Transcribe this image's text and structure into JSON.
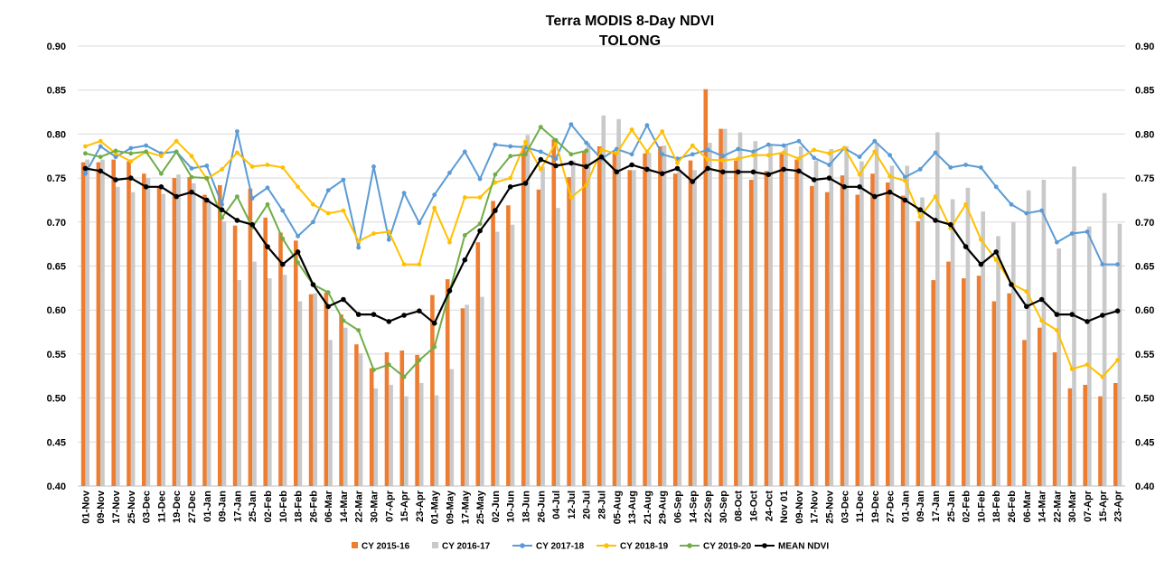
{
  "chart_data": {
    "type": "bar+line",
    "title": "Terra MODIS 8-Day  NDVI",
    "subtitle": "TOLONG",
    "xlabel": "",
    "ylabel": "",
    "ylim": [
      0.4,
      0.9
    ],
    "ytick_step": 0.05,
    "ytick_labels": [
      "0.40",
      "0.45",
      "0.50",
      "0.55",
      "0.60",
      "0.65",
      "0.70",
      "0.75",
      "0.80",
      "0.85",
      "0.90"
    ],
    "grid": true,
    "legend_position": "bottom",
    "categories": [
      "01-Nov",
      "09-Nov",
      "17-Nov",
      "25-Nov",
      "03-Dec",
      "11-Dec",
      "19-Dec",
      "27-Dec",
      "01-Jan",
      "09-Jan",
      "17-Jan",
      "25-Jan",
      "02-Feb",
      "10-Feb",
      "18-Feb",
      "26-Feb",
      "06-Mar",
      "14-Mar",
      "22-Mar",
      "30-Mar",
      "07-Apr",
      "15-Apr",
      "23-Apr",
      "01-May",
      "09-May",
      "17-May",
      "25-May",
      "02-Jun",
      "10-Jun",
      "18-Jun",
      "26-Jun",
      "04-Jul",
      "12-Jul",
      "20-Jul",
      "28-Jul",
      "05-Aug",
      "13-Aug",
      "21-Aug",
      "29-Aug",
      "06-Sep",
      "14-Sep",
      "22-Sep",
      "30-Sep",
      "08-Oct",
      "16-Oct",
      "24-Oct",
      "Nov 01",
      "09-Nov",
      "17-Nov",
      "25-Nov",
      "03-Dec",
      "11-Dec",
      "19-Dec",
      "27-Dec",
      "01-Jan",
      "09-Jan",
      "17-Jan",
      "25-Jan",
      "02-Feb",
      "10-Feb",
      "18-Feb",
      "26-Feb",
      "06-Mar",
      "14-Mar",
      "22-Mar",
      "30-Mar",
      "07-Apr",
      "15-Apr",
      "23-Apr"
    ],
    "bar_series": [
      {
        "name": "CY 2015-16",
        "color": "#ED7D31",
        "values": [
          0.768,
          0.768,
          0.771,
          0.769,
          0.755,
          0.741,
          0.75,
          0.751,
          0.731,
          0.742,
          0.696,
          0.738,
          0.705,
          0.688,
          0.679,
          0.618,
          0.62,
          0.595,
          0.561,
          0.534,
          0.552,
          0.554,
          0.549,
          0.617,
          0.635,
          0.602,
          0.677,
          0.724,
          0.719,
          0.787,
          0.737,
          0.794,
          0.751,
          0.78,
          0.786,
          0.78,
          0.759,
          0.778,
          0.786,
          0.755,
          0.77,
          0.851,
          0.806,
          0.77,
          0.748,
          0.758,
          0.779,
          0.771,
          0.741,
          0.734,
          0.753,
          0.731,
          0.755,
          0.745,
          0.73,
          0.701,
          0.634,
          0.655,
          0.636,
          0.639,
          0.61,
          0.619,
          0.566,
          0.58,
          0.552,
          0.511,
          0.515,
          0.502,
          0.517
        ]
      },
      {
        "name": "CY 2016-17",
        "color": "#C9C9C9",
        "values": [
          0.771,
          0.771,
          0.74,
          0.734,
          0.75,
          0.732,
          0.754,
          0.744,
          0.725,
          0.701,
          0.634,
          0.655,
          0.636,
          0.64,
          0.61,
          0.619,
          0.566,
          0.58,
          0.551,
          0.511,
          0.515,
          0.502,
          0.517,
          0.503,
          0.533,
          0.606,
          0.615,
          0.689,
          0.697,
          0.799,
          0.763,
          0.716,
          0.77,
          0.79,
          0.821,
          0.817,
          0.759,
          0.779,
          0.787,
          0.76,
          0.759,
          0.79,
          0.806,
          0.802,
          0.792,
          0.787,
          0.787,
          0.786,
          0.77,
          0.783,
          0.786,
          0.769,
          0.79,
          0.764,
          0.764,
          0.728,
          0.802,
          0.726,
          0.739,
          0.712,
          0.684,
          0.7,
          0.736,
          0.748,
          0.67,
          0.763,
          0.695,
          0.733,
          0.698
        ]
      }
    ],
    "line_series": [
      {
        "name": "CY 2017-18",
        "color": "#5B9BD5",
        "values": [
          0.755,
          0.786,
          0.774,
          0.784,
          0.787,
          0.778,
          0.78,
          0.761,
          0.764,
          0.72,
          0.803,
          0.727,
          0.739,
          0.713,
          0.684,
          0.7,
          0.736,
          0.748,
          0.671,
          0.763,
          0.68,
          0.733,
          0.699,
          0.731,
          0.756,
          0.78,
          0.749,
          0.788,
          0.786,
          0.785,
          0.78,
          0.772,
          0.811,
          0.79,
          0.772,
          0.783,
          0.777,
          0.81,
          0.777,
          0.772,
          0.777,
          0.782,
          0.775,
          0.783,
          0.78,
          0.788,
          0.787,
          0.792,
          0.773,
          0.765,
          0.784,
          0.774,
          0.792,
          0.776,
          0.751,
          0.76,
          0.779,
          0.762,
          0.765,
          0.762,
          0.74,
          0.72,
          0.71,
          0.713,
          0.677,
          0.687,
          0.689,
          0.652,
          0.652
        ]
      },
      {
        "name": "CY 2018-19",
        "color": "#FFC000",
        "values": [
          0.786,
          0.792,
          0.778,
          0.769,
          0.78,
          0.775,
          0.792,
          0.775,
          0.749,
          0.76,
          0.779,
          0.763,
          0.765,
          0.762,
          0.74,
          0.72,
          0.71,
          0.713,
          0.678,
          0.687,
          0.689,
          0.652,
          0.652,
          0.716,
          0.677,
          0.728,
          0.728,
          0.745,
          0.75,
          0.791,
          0.76,
          0.79,
          0.728,
          0.742,
          0.782,
          0.778,
          0.805,
          0.78,
          0.803,
          0.767,
          0.787,
          0.771,
          0.77,
          0.772,
          0.776,
          0.776,
          0.779,
          0.772,
          0.782,
          0.778,
          0.784,
          0.754,
          0.78,
          0.752,
          0.747,
          0.706,
          0.729,
          0.693,
          0.72,
          0.68,
          0.657,
          0.63,
          0.621,
          0.588,
          0.577,
          0.533,
          0.538,
          0.524,
          0.543
        ]
      },
      {
        "name": "CY 2019-20",
        "color": "#70AD47",
        "values": [
          0.778,
          0.774,
          0.781,
          0.778,
          0.78,
          0.755,
          0.78,
          0.751,
          0.75,
          0.705,
          0.729,
          0.694,
          0.72,
          0.681,
          0.654,
          0.629,
          0.62,
          0.588,
          0.577,
          0.532,
          0.538,
          0.524,
          0.543,
          0.558,
          0.621,
          0.685,
          0.698,
          0.754,
          0.775,
          0.777,
          0.808,
          0.793,
          0.777,
          0.781
        ]
      },
      {
        "name": "MEAN NDVI",
        "color": "#000000",
        "values": [
          0.761,
          0.758,
          0.748,
          0.75,
          0.74,
          0.74,
          0.729,
          0.734,
          0.725,
          0.714,
          0.702,
          0.697,
          0.672,
          0.652,
          0.666,
          0.629,
          0.604,
          0.612,
          0.595,
          0.595,
          0.587,
          0.594,
          0.599,
          0.585,
          0.622,
          0.657,
          0.69,
          0.713,
          0.74,
          0.744,
          0.771,
          0.764,
          0.767,
          0.763,
          0.774,
          0.757,
          0.765,
          0.76,
          0.755,
          0.761,
          0.746,
          0.761,
          0.757,
          0.757,
          0.757,
          0.754,
          0.76,
          0.758,
          0.748,
          0.75,
          0.74,
          0.74,
          0.729,
          0.734,
          0.725,
          0.714,
          0.702,
          0.697,
          0.672,
          0.652,
          0.666,
          0.629,
          0.604,
          0.612,
          0.595,
          0.595,
          0.587,
          0.594,
          0.599
        ]
      }
    ]
  }
}
